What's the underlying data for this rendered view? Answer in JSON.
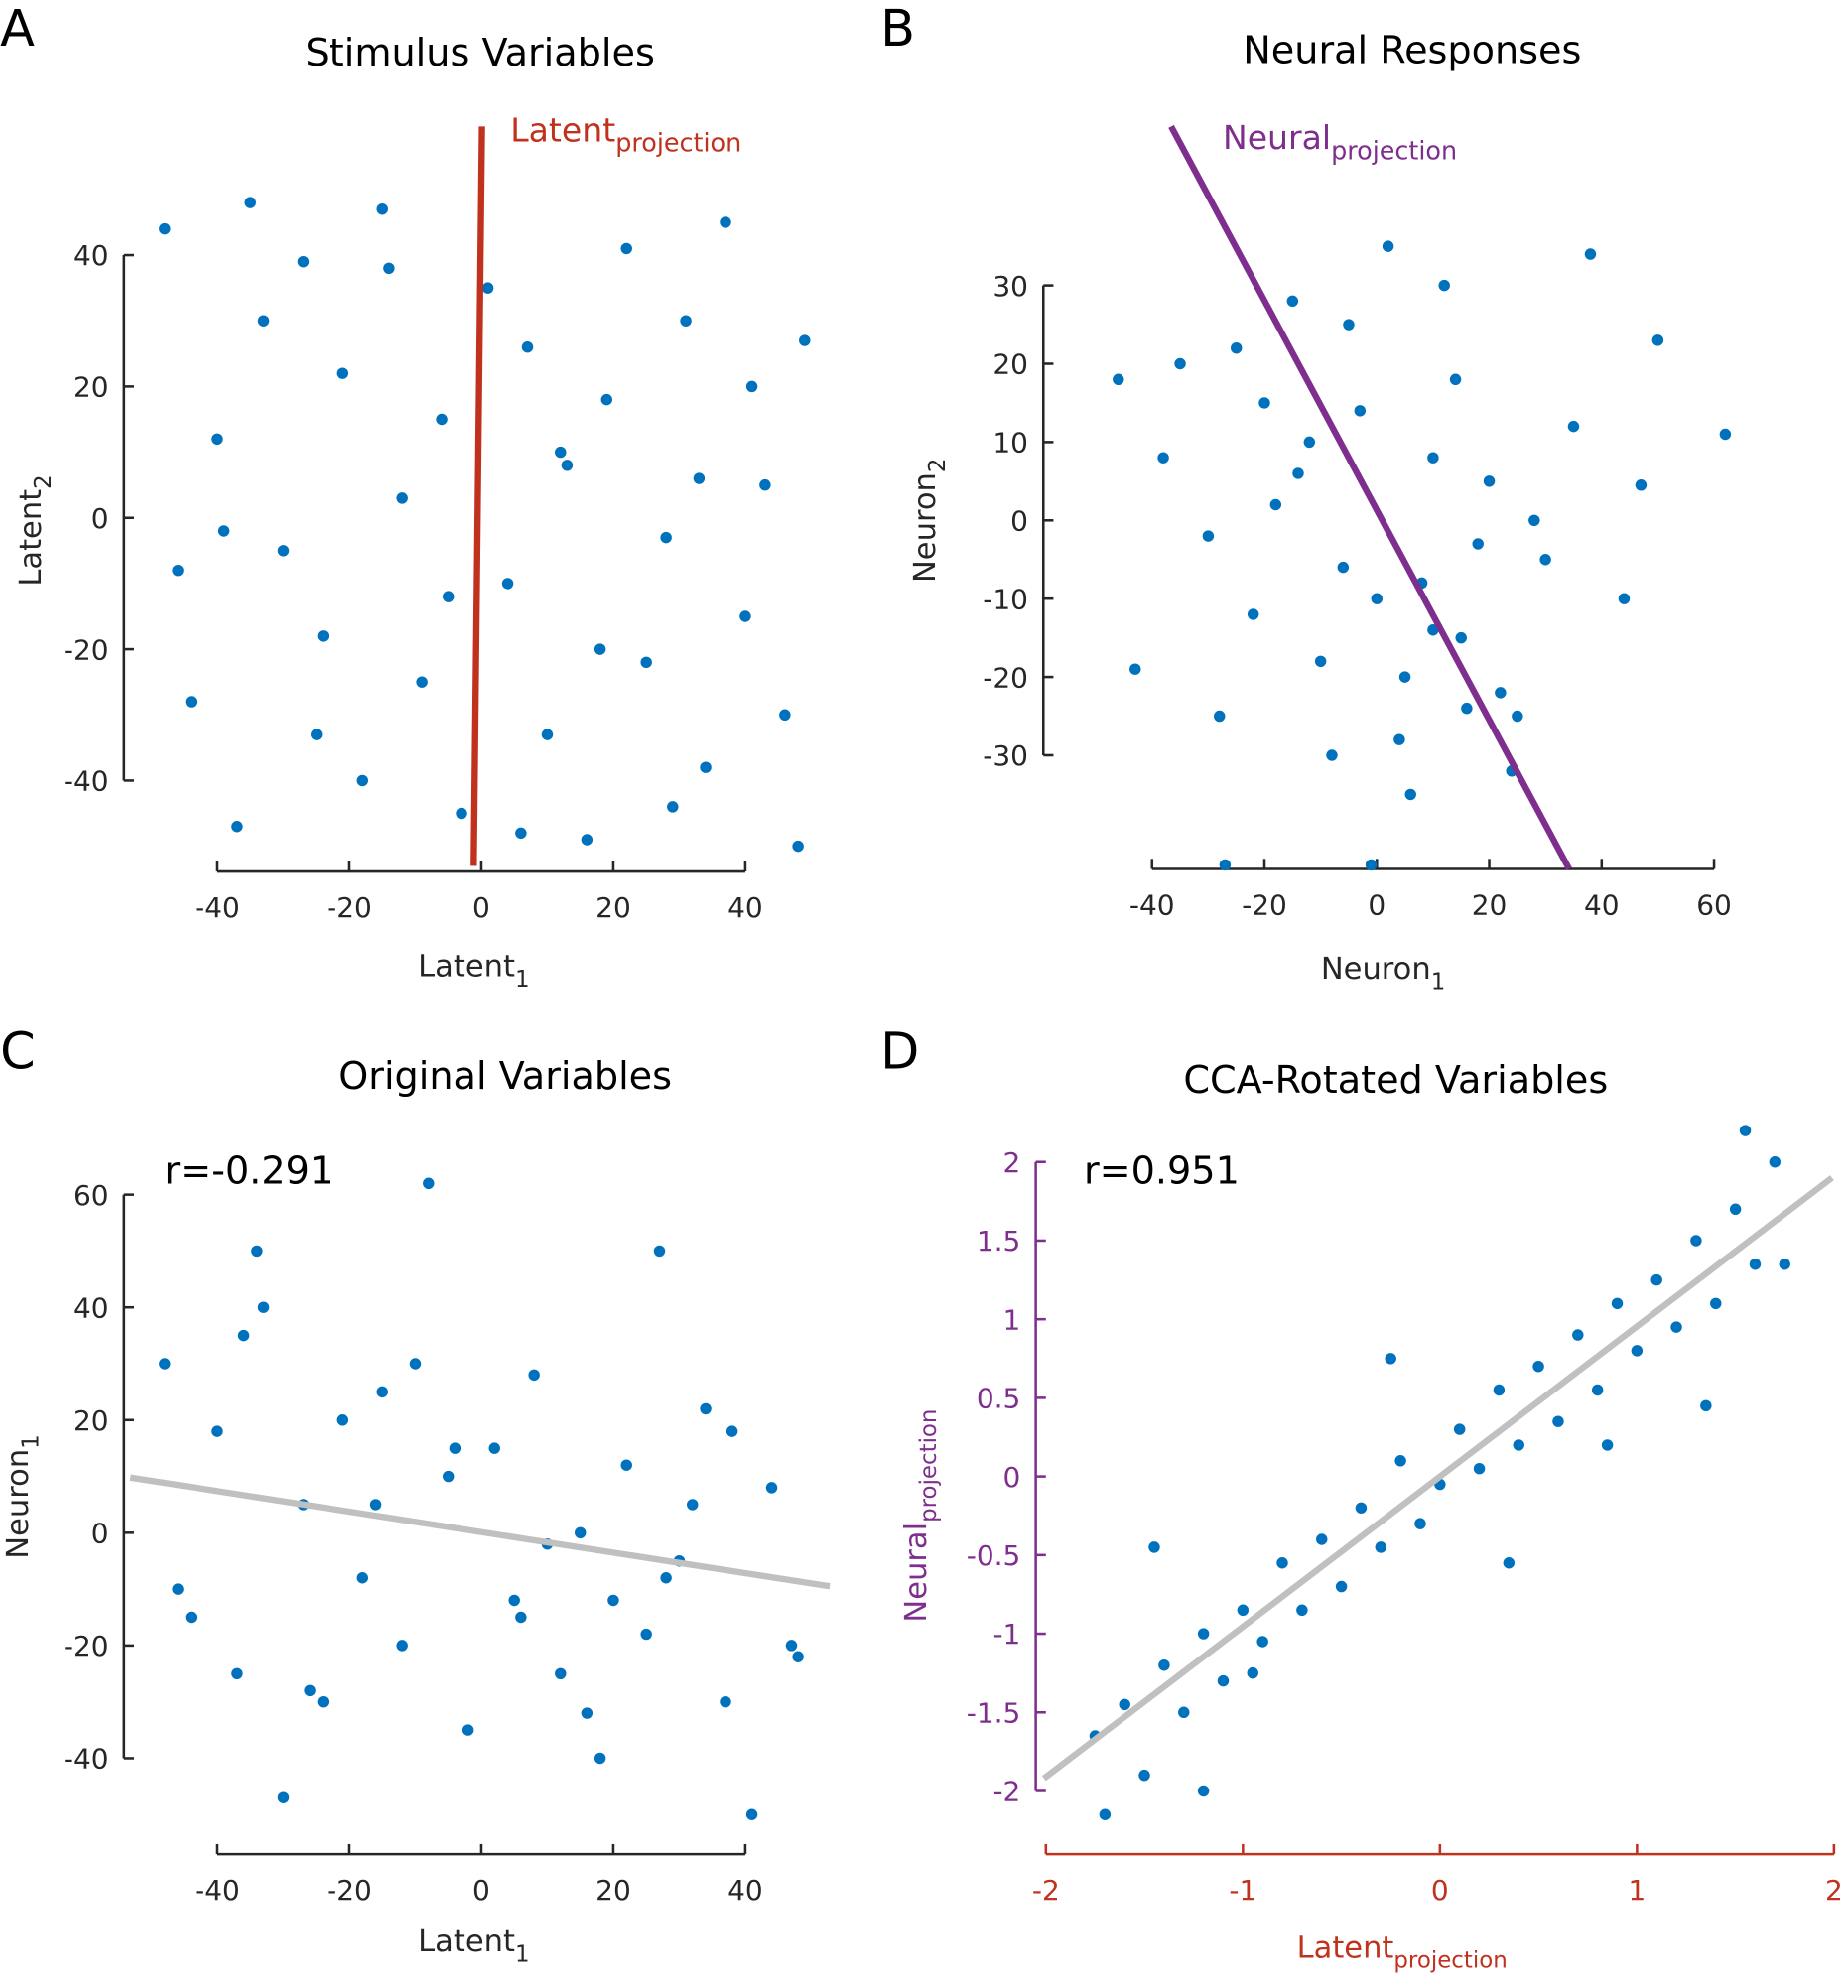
{
  "chart_data": [
    {
      "panel_label": "A",
      "type": "scatter",
      "title": "Stimulus Variables",
      "xlabel": "Latent",
      "xlabel_sub": "1",
      "ylabel": "Latent",
      "ylabel_sub": "2",
      "xlim": [
        -52,
        52
      ],
      "ylim": [
        -52,
        52
      ],
      "xticks": [
        -40,
        -20,
        0,
        20,
        40
      ],
      "yticks": [
        -40,
        -20,
        0,
        20,
        40
      ],
      "color": "#0072bd",
      "xaxis_color": "#262626",
      "yaxis_color": "#262626",
      "x": [
        -48,
        -44,
        -40,
        -37,
        -33,
        -30,
        -27,
        -24,
        -21,
        -18,
        -15,
        -12,
        -9,
        -6,
        -3,
        1,
        4,
        7,
        10,
        13,
        16,
        19,
        22,
        25,
        28,
        31,
        34,
        37,
        40,
        43,
        46,
        49,
        -46,
        -35,
        -25,
        -14,
        -5,
        6,
        18,
        29,
        41,
        48,
        -39,
        12,
        33
      ],
      "y": [
        44,
        -28,
        12,
        -47,
        30,
        -5,
        39,
        -18,
        22,
        -40,
        47,
        3,
        -25,
        15,
        -45,
        35,
        -10,
        26,
        -33,
        8,
        -49,
        18,
        41,
        -22,
        -3,
        30,
        -38,
        45,
        -15,
        5,
        -30,
        27,
        -8,
        48,
        -33,
        38,
        -12,
        -48,
        -20,
        -44,
        20,
        -50,
        -2,
        10,
        6
      ],
      "lines": [
        {
          "name": "Latent",
          "name_sub": "projection",
          "color": "#c0321e",
          "x": [
            -1.15,
            0.1
          ],
          "y": [
            -53,
            59.6
          ]
        }
      ]
    },
    {
      "panel_label": "B",
      "type": "scatter",
      "title": "Neural Responses",
      "xlabel": "Neuron",
      "xlabel_sub": "1",
      "ylabel": "Neuron",
      "ylabel_sub": "2",
      "xlim": [
        -47,
        63
      ],
      "ylim": [
        -44,
        52
      ],
      "xticks": [
        -40,
        -20,
        0,
        20,
        40,
        60
      ],
      "yticks": [
        -30,
        -20,
        -10,
        0,
        10,
        20,
        30
      ],
      "color": "#0072bd",
      "xaxis_color": "#262626",
      "yaxis_color": "#262626",
      "x": [
        62,
        50,
        47,
        -46,
        -43,
        -27,
        -1,
        -35,
        -20,
        -12,
        -5,
        0,
        5,
        10,
        15,
        20,
        25,
        30,
        35,
        -30,
        -22,
        -15,
        -8,
        2,
        8,
        14,
        22,
        28,
        -38,
        -25,
        -10,
        4,
        12,
        18,
        -18,
        -3,
        6,
        -28,
        38,
        44,
        -6,
        10,
        -14,
        24,
        16
      ],
      "y": [
        11,
        23,
        4.5,
        18,
        -19,
        -44,
        -44,
        20,
        15,
        10,
        25,
        -10,
        -20,
        8,
        -15,
        5,
        -25,
        -5,
        12,
        -2,
        -12,
        28,
        -30,
        35,
        -8,
        18,
        -22,
        0,
        8,
        22,
        -18,
        -28,
        30,
        -3,
        2,
        14,
        -35,
        -25,
        34,
        -10,
        -6,
        -14,
        6,
        -32,
        -24
      ],
      "lines": [
        {
          "name": "Neural",
          "name_sub": "projection",
          "color": "#7e2f8e",
          "x": [
            -36.6,
            34.2
          ],
          "y": [
            50.3,
            -44.5
          ]
        }
      ]
    },
    {
      "panel_label": "C",
      "type": "scatter",
      "title": "Original Variables",
      "xlabel": "Latent",
      "xlabel_sub": "1",
      "ylabel": "Neuron",
      "ylabel_sub": "1",
      "annotation": "r=-0.291",
      "xlim": [
        -52,
        52
      ],
      "ylim": [
        -52,
        64
      ],
      "xticks": [
        -40,
        -20,
        0,
        20,
        40
      ],
      "yticks": [
        -40,
        -20,
        0,
        20,
        40,
        60
      ],
      "color": "#0072bd",
      "xaxis_color": "#262626",
      "yaxis_color": "#262626",
      "x": [
        -8,
        -34,
        27,
        41,
        -30,
        -48,
        -44,
        -40,
        -37,
        -33,
        -27,
        -24,
        -21,
        -18,
        -15,
        -12,
        -5,
        -2,
        2,
        5,
        8,
        12,
        15,
        18,
        22,
        25,
        30,
        34,
        37,
        44,
        48,
        -46,
        -36,
        -26,
        -16,
        -4,
        6,
        16,
        28,
        38,
        47,
        -10,
        10,
        20,
        32
      ],
      "y": [
        62,
        50,
        50,
        -50,
        -47,
        30,
        -15,
        18,
        -25,
        40,
        5,
        -30,
        20,
        -8,
        25,
        -20,
        10,
        -35,
        15,
        -12,
        28,
        -25,
        0,
        -40,
        12,
        -18,
        -5,
        22,
        -30,
        8,
        -22,
        -10,
        35,
        -28,
        5,
        15,
        -15,
        -32,
        -8,
        18,
        -20,
        30,
        -2,
        -12,
        5
      ],
      "lines": [
        {
          "color": "#c0c0c0",
          "x": [
            -53.2,
            52.8
          ],
          "y": [
            9.8,
            -9.5
          ]
        }
      ]
    },
    {
      "panel_label": "D",
      "type": "scatter",
      "title": "CCA-Rotated Variables",
      "xlabel": "Latent",
      "xlabel_sub": "projection",
      "ylabel": "Neural",
      "ylabel_sub": "projection",
      "annotation": "r=0.951",
      "xlim": [
        -2,
        2
      ],
      "ylim": [
        -2.2,
        2.2
      ],
      "xticks": [
        -2,
        -1,
        0,
        1,
        2
      ],
      "yticks": [
        -2,
        -1.5,
        -1,
        -0.5,
        0,
        0.5,
        1,
        1.5,
        2
      ],
      "color": "#0072bd",
      "xaxis_color": "#c0321e",
      "yaxis_color": "#7e2f8e",
      "x": [
        -1.75,
        -1.7,
        -1.6,
        -1.5,
        -1.4,
        -1.3,
        -1.2,
        -1.1,
        -1.0,
        -0.9,
        -0.8,
        -0.7,
        -0.6,
        -0.5,
        -0.4,
        -0.3,
        -0.2,
        -0.1,
        0,
        0.1,
        0.2,
        0.3,
        0.4,
        0.5,
        0.6,
        0.7,
        0.8,
        0.9,
        1.0,
        1.1,
        1.2,
        1.3,
        1.4,
        1.5,
        1.6,
        1.7,
        1.75,
        -1.45,
        -0.95,
        -0.25,
        0.35,
        0.85,
        1.35,
        1.55,
        -1.2
      ],
      "y": [
        -1.65,
        -2.15,
        -1.45,
        -1.9,
        -1.2,
        -1.5,
        -1.0,
        -1.3,
        -0.85,
        -1.05,
        -0.55,
        -0.85,
        -0.4,
        -0.7,
        -0.2,
        -0.45,
        0.1,
        -0.3,
        -0.05,
        0.3,
        0.05,
        0.55,
        0.2,
        0.7,
        0.35,
        0.9,
        0.55,
        1.1,
        0.8,
        1.25,
        0.95,
        1.5,
        1.1,
        1.7,
        1.35,
        2.0,
        1.35,
        -0.45,
        -1.25,
        0.75,
        -0.55,
        0.2,
        0.45,
        2.2,
        -2.0
      ],
      "lines": [
        {
          "color": "#c0c0c0",
          "x": [
            -2.01,
            1.99
          ],
          "y": [
            -1.92,
            1.9
          ]
        }
      ]
    }
  ]
}
